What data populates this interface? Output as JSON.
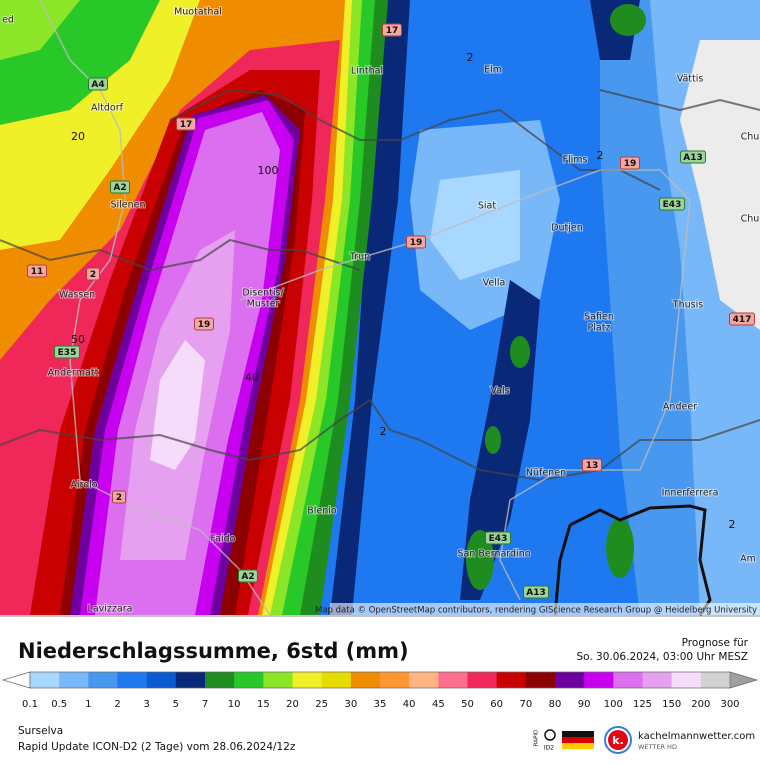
{
  "map": {
    "places": [
      "Muotathal",
      "Linthal",
      "Elm",
      "Vättis",
      "Altdorf",
      "Flims",
      "Silenen",
      "Siat",
      "Dutjen",
      "Trun",
      "Wassen",
      "Disentis/",
      "Mustér",
      "Vella",
      "Safien",
      "Platz",
      "Thusis",
      "Andermatt",
      "Vals",
      "Andeer",
      "Nüfenen",
      "Airolo",
      "Innerferrera",
      "Blenio",
      "Faido",
      "San Bernardino",
      "Lavizzara",
      "Am",
      "ed",
      "Chu",
      "Chu"
    ],
    "contours": [
      "20",
      "100",
      "50",
      "40",
      "2",
      "2",
      "2",
      "2"
    ],
    "roads": [
      "A4",
      "17",
      "17",
      "A2",
      "11",
      "2",
      "19",
      "19",
      "A13",
      "E43",
      "417",
      "E35",
      "19",
      "2",
      "13",
      "E43",
      "A2",
      "A13"
    ],
    "attribution": "Map data © OpenStreetMap contributors, rendering GIScience Research Group @ Heidelberg University"
  },
  "header": {
    "title": "Niederschlagssumme, 6std (mm)",
    "forecast_label": "Prognose für",
    "forecast_time": "So. 30.06.2024, 03:00 Uhr MESZ"
  },
  "legend": {
    "ticks": [
      0.1,
      0.5,
      1,
      2,
      3,
      5,
      7,
      10,
      15,
      20,
      25,
      30,
      35,
      40,
      45,
      50,
      60,
      70,
      80,
      90,
      100,
      125,
      150,
      200,
      300
    ],
    "colors": [
      "#a8d8ff",
      "#78b8f8",
      "#4898f0",
      "#1e78f0",
      "#0a5ad2",
      "#0a2878",
      "#1e8c1e",
      "#28c828",
      "#8ce628",
      "#f0f028",
      "#e6dc00",
      "#f08c00",
      "#ff9632",
      "#ffb482",
      "#ff6e8c",
      "#f0285a",
      "#c80000",
      "#8c0000",
      "#6e00a0",
      "#c800f0",
      "#dc6ef0",
      "#e6a0f0",
      "#f5dcfa",
      "#d2d2d2"
    ],
    "below_color": "#ffffff",
    "above_color": "#a0a0a0"
  },
  "footer": {
    "region": "Surselva",
    "model": "Rapid Update ICON-D2 (2 Tage) vom  28.06.2024/12z",
    "badge_top": "RAPID",
    "badge_bottom": "ID2",
    "logo_letter": "k.",
    "site": "kachelmannwetter.com",
    "site_sub": "WETTER HD"
  }
}
